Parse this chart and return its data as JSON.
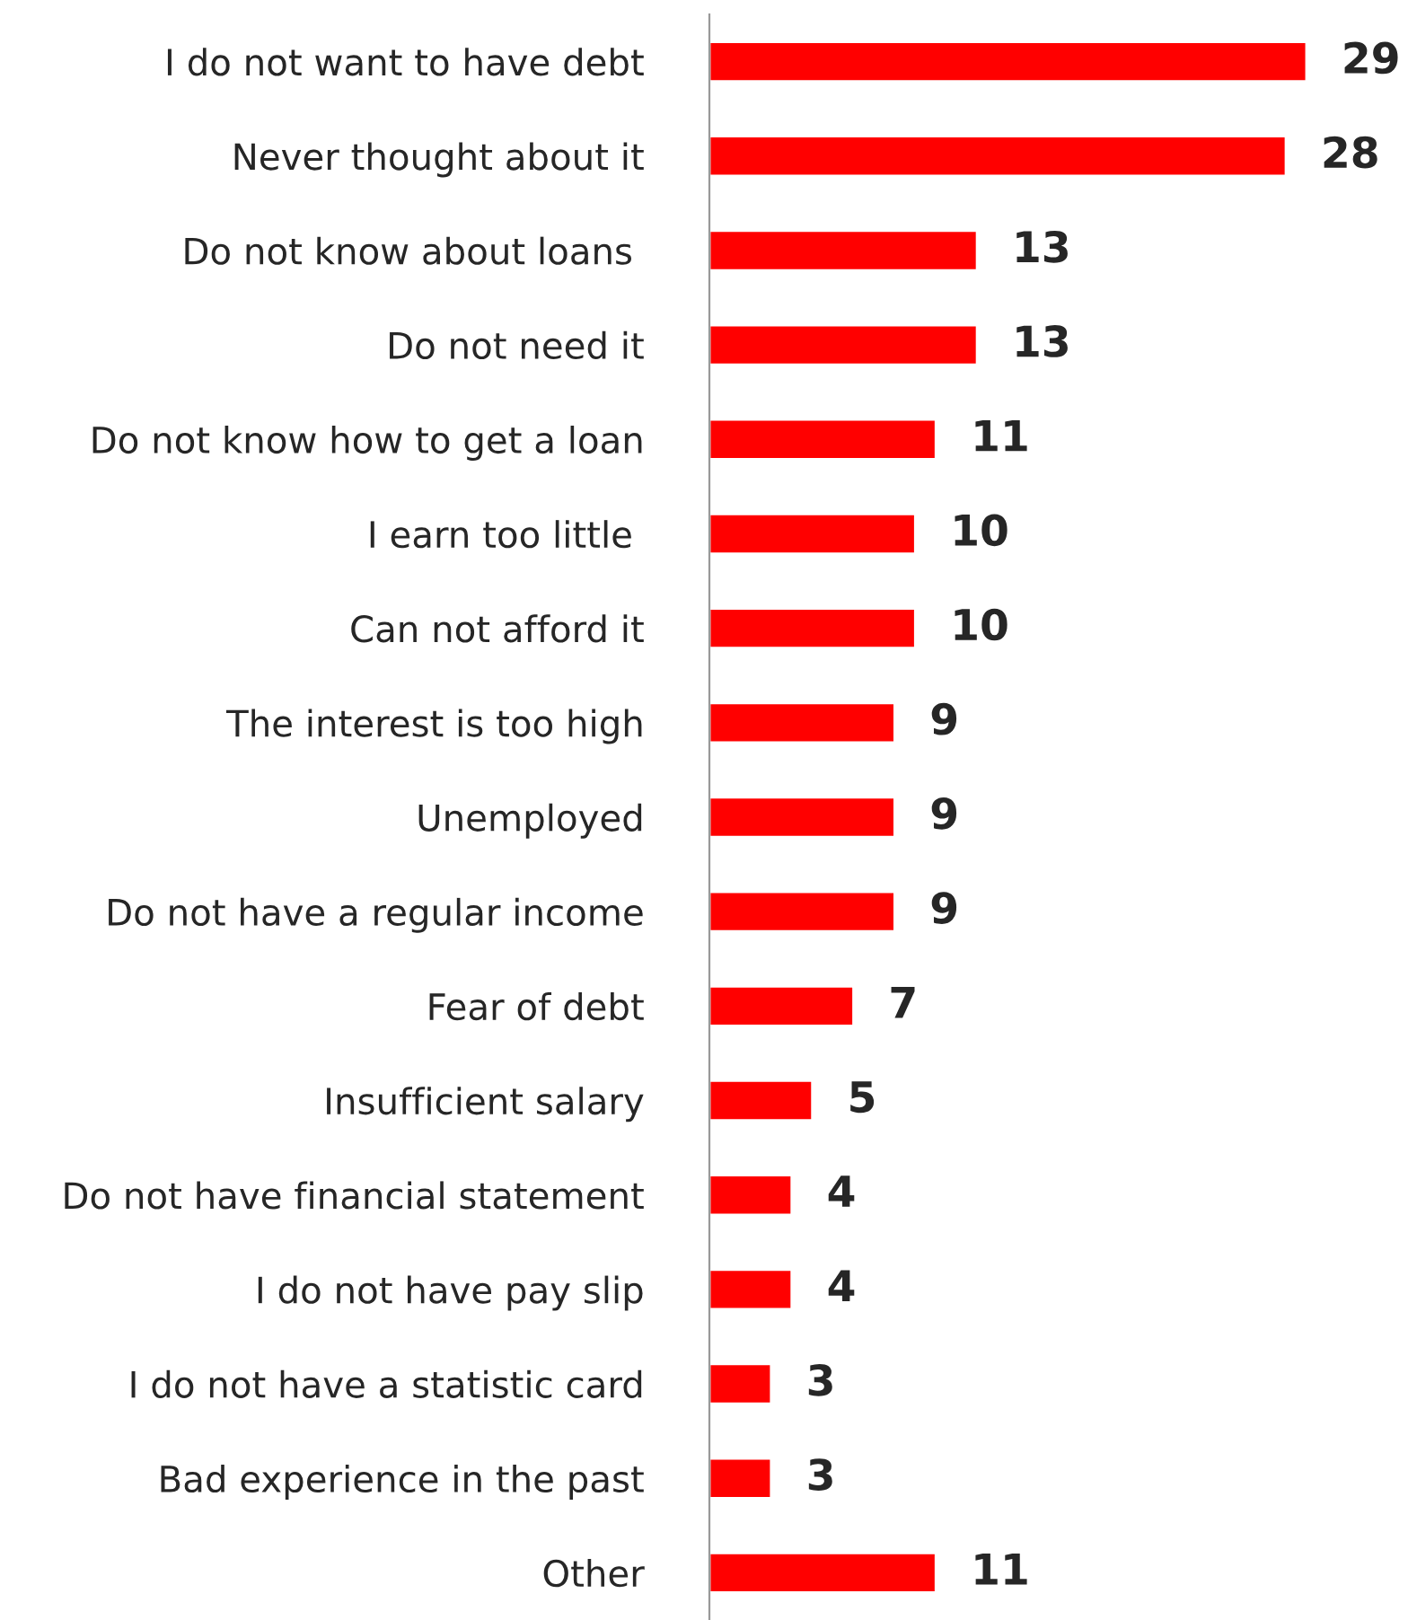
{
  "chart_data": {
    "type": "bar",
    "orientation": "horizontal",
    "categories": [
      "I do not want to have debt",
      "Never thought about it",
      "Do not know about loans ",
      "Do not need it",
      "Do not know how to get a loan",
      "I earn too little ",
      "Can not afford it",
      "The interest is too high",
      "Unemployed",
      "Do not have a regular income",
      "Fear of debt",
      "Insufficient salary",
      "Do not have financial statement",
      "I do not have pay slip",
      "I do not have a statistic card",
      "Bad experience in the past",
      "Other"
    ],
    "values": [
      29,
      28,
      13,
      13,
      11,
      10,
      10,
      9,
      9,
      9,
      7,
      5,
      4,
      4,
      3,
      3,
      11
    ],
    "color": "#ff0000",
    "data_labels": true,
    "grid": false,
    "legend": false,
    "tick_labels": "y"
  }
}
